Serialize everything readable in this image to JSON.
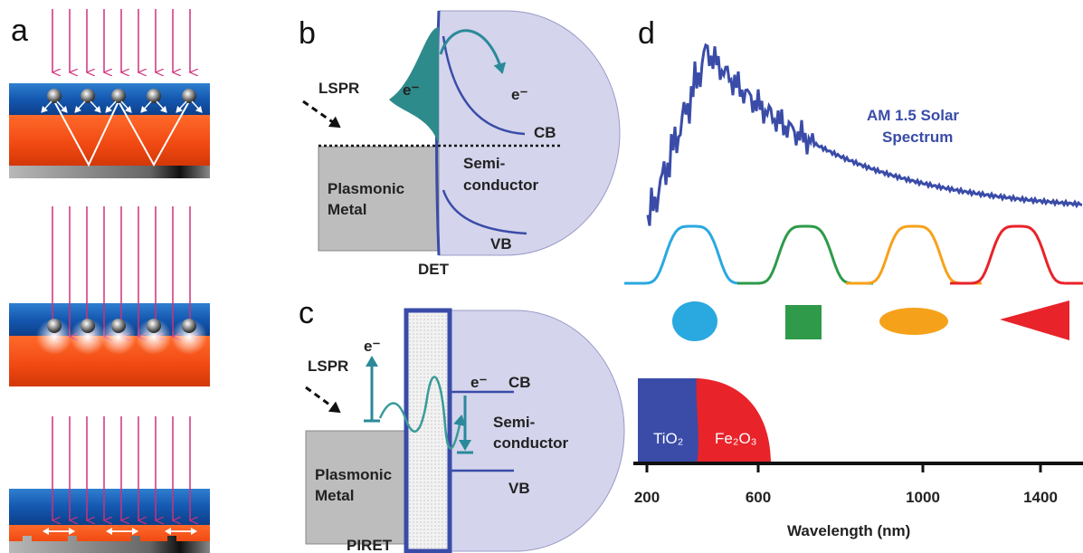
{
  "panels": {
    "a": {
      "label": "a"
    },
    "b": {
      "label": "b",
      "lspr": "LSPR",
      "electron_left": "e⁻",
      "electron_right": "e⁻",
      "cb": "CB",
      "semiconductor": [
        "Semi-",
        "conductor"
      ],
      "metal": [
        "Plasmonic",
        "Metal"
      ],
      "vb": "VB",
      "caption": "DET"
    },
    "c": {
      "label": "c",
      "lspr": "LSPR",
      "electron_left": "e⁻",
      "electron_right": "e⁻",
      "cb": "CB",
      "semiconductor": [
        "Semi-",
        "conductor"
      ],
      "metal": [
        "Plasmonic",
        "Metal"
      ],
      "vb": "VB",
      "caption": "PIRET"
    },
    "d": {
      "label": "d",
      "spectrum_label": [
        "AM 1.5 Solar",
        "Spectrum"
      ],
      "materials": [
        "TiO₂",
        "Fe₂O₃"
      ],
      "axis_ticks": [
        200,
        600,
        1000,
        1400
      ],
      "axis_label": "Wavelength (nm)"
    }
  }
}
